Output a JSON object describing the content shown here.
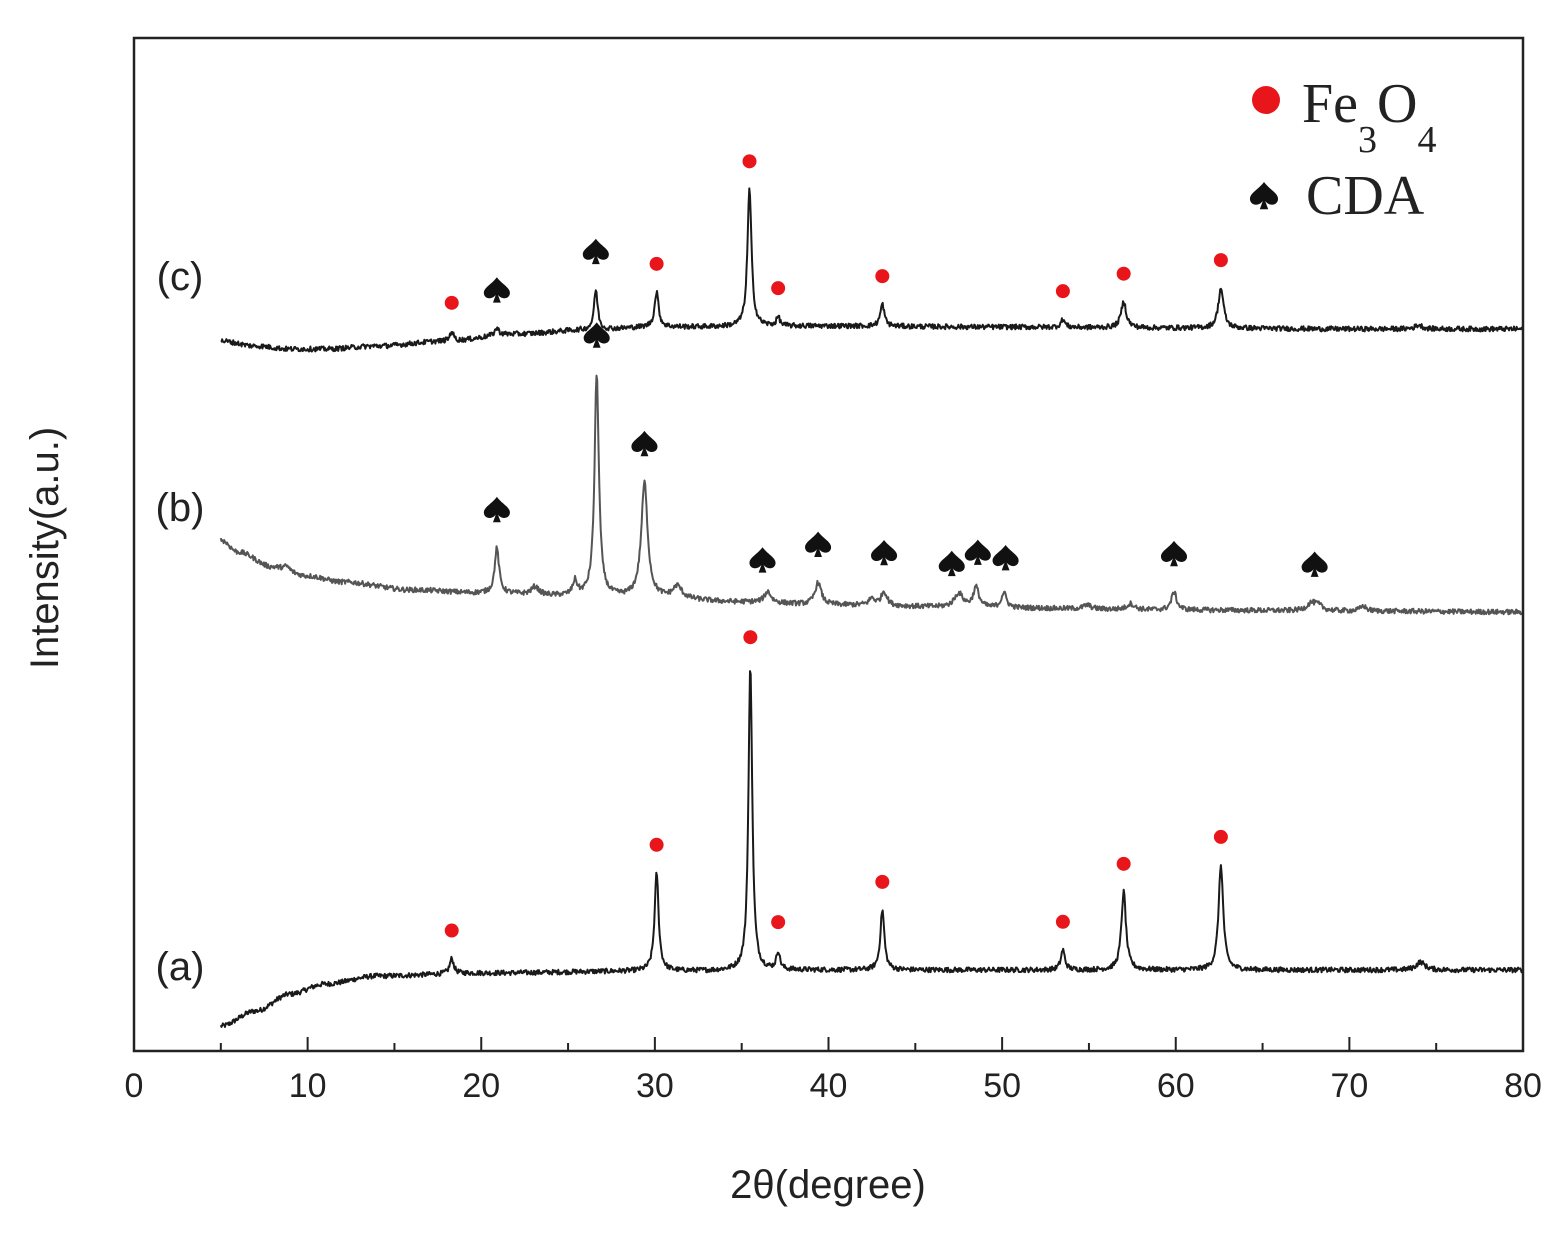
{
  "chart_data": {
    "type": "line",
    "title": "",
    "xlabel": "2θ(degree)",
    "ylabel": "Intensity(a.u.)",
    "xlim": [
      0,
      80
    ],
    "xticks": [
      0,
      10,
      20,
      30,
      40,
      50,
      60,
      70,
      80
    ],
    "yticks_shown": false,
    "grid": false,
    "legend_position": "top-right",
    "legend": [
      {
        "marker": "red-circle",
        "label": "Fe",
        "sub1": "3",
        "mid": "O",
        "sub2": "4",
        "full": "Fe3O4"
      },
      {
        "marker": "spade",
        "label": "CDA"
      }
    ],
    "colors": {
      "fe3o4_marker": "#e8161b",
      "cda_marker": "#111111",
      "trace_dark": "#1a1a1a",
      "trace_light": "#555555"
    },
    "x_range": [
      5,
      80
    ],
    "series": [
      {
        "name": "(a)",
        "label": "(a)",
        "color": "#1a1a1a",
        "baseline": [
          [
            5,
            -50
          ],
          [
            7,
            -35
          ],
          [
            9,
            -18
          ],
          [
            11,
            -8
          ],
          [
            14,
            0
          ],
          [
            20,
            3
          ],
          [
            30,
            5
          ],
          [
            40,
            6
          ],
          [
            50,
            6
          ],
          [
            60,
            6
          ],
          [
            70,
            6
          ],
          [
            80,
            6
          ]
        ],
        "peaks": [
          {
            "pos": 18.3,
            "height": 15,
            "width": 0.14
          },
          {
            "pos": 30.1,
            "height": 98,
            "width": 0.14
          },
          {
            "pos": 35.5,
            "height": 305,
            "width": 0.13
          },
          {
            "pos": 37.1,
            "height": 18,
            "width": 0.12
          },
          {
            "pos": 43.1,
            "height": 60,
            "width": 0.14
          },
          {
            "pos": 53.5,
            "height": 20,
            "width": 0.14
          },
          {
            "pos": 57.0,
            "height": 78,
            "width": 0.16
          },
          {
            "pos": 62.6,
            "height": 105,
            "width": 0.16
          },
          {
            "pos": 74.1,
            "height": 8,
            "width": 0.3
          }
        ],
        "markers": [
          {
            "type": "fe3o4",
            "x": 18.3
          },
          {
            "type": "fe3o4",
            "x": 30.1
          },
          {
            "type": "fe3o4",
            "x": 35.5
          },
          {
            "type": "fe3o4",
            "x": 37.1
          },
          {
            "type": "fe3o4",
            "x": 43.1
          },
          {
            "type": "fe3o4",
            "x": 53.5
          },
          {
            "type": "fe3o4",
            "x": 57.0
          },
          {
            "type": "fe3o4",
            "x": 62.6
          }
        ]
      },
      {
        "name": "(b)",
        "label": "(b)",
        "color": "#555555",
        "baseline": [
          [
            5,
            72
          ],
          [
            6,
            60
          ],
          [
            8,
            45
          ],
          [
            10,
            36
          ],
          [
            12,
            30
          ],
          [
            16,
            22
          ],
          [
            20,
            19
          ],
          [
            25,
            16
          ],
          [
            30,
            14
          ],
          [
            35,
            10
          ],
          [
            40,
            7
          ],
          [
            50,
            4
          ],
          [
            60,
            2
          ],
          [
            70,
            1
          ],
          [
            80,
            0
          ]
        ],
        "peaks": [
          {
            "pos": 8.8,
            "height": 4,
            "width": 0.2
          },
          {
            "pos": 20.9,
            "height": 45,
            "width": 0.15
          },
          {
            "pos": 23.1,
            "height": 8,
            "width": 0.25
          },
          {
            "pos": 25.4,
            "height": 14,
            "width": 0.15
          },
          {
            "pos": 26.65,
            "height": 222,
            "width": 0.15
          },
          {
            "pos": 29.4,
            "height": 115,
            "width": 0.22
          },
          {
            "pos": 31.3,
            "height": 12,
            "width": 0.3
          },
          {
            "pos": 36.5,
            "height": 11,
            "width": 0.22
          },
          {
            "pos": 39.4,
            "height": 22,
            "width": 0.22
          },
          {
            "pos": 42.5,
            "height": 7,
            "width": 0.2
          },
          {
            "pos": 43.2,
            "height": 14,
            "width": 0.2
          },
          {
            "pos": 47.5,
            "height": 14,
            "width": 0.3
          },
          {
            "pos": 48.5,
            "height": 20,
            "width": 0.2
          },
          {
            "pos": 50.1,
            "height": 15,
            "width": 0.18
          },
          {
            "pos": 54.9,
            "height": 4,
            "width": 0.25
          },
          {
            "pos": 57.4,
            "height": 6,
            "width": 0.25
          },
          {
            "pos": 59.9,
            "height": 18,
            "width": 0.18
          },
          {
            "pos": 67.8,
            "height": 7,
            "width": 0.3
          },
          {
            "pos": 68.2,
            "height": 5,
            "width": 0.3
          },
          {
            "pos": 70.8,
            "height": 5,
            "width": 0.2
          }
        ],
        "markers": [
          {
            "type": "cda",
            "x": 20.9
          },
          {
            "type": "cda",
            "x": 26.65
          },
          {
            "type": "cda",
            "x": 29.4
          },
          {
            "type": "cda",
            "x": 36.2
          },
          {
            "type": "cda",
            "x": 39.4
          },
          {
            "type": "cda",
            "x": 43.2
          },
          {
            "type": "cda",
            "x": 47.1
          },
          {
            "type": "cda",
            "x": 48.6
          },
          {
            "type": "cda",
            "x": 50.2
          },
          {
            "type": "cda",
            "x": 59.9
          },
          {
            "type": "cda",
            "x": 68.0
          }
        ]
      },
      {
        "name": "(c)",
        "label": "(c)",
        "color": "#1a1a1a",
        "baseline": [
          [
            5,
            10
          ],
          [
            7,
            5
          ],
          [
            9,
            2
          ],
          [
            11,
            2
          ],
          [
            14,
            5
          ],
          [
            18,
            10
          ],
          [
            22,
            17
          ],
          [
            26,
            21
          ],
          [
            30,
            24
          ],
          [
            40,
            25
          ],
          [
            50,
            24
          ],
          [
            60,
            23
          ],
          [
            70,
            22
          ],
          [
            80,
            22
          ]
        ],
        "peaks": [
          {
            "pos": 18.3,
            "height": 10,
            "width": 0.12
          },
          {
            "pos": 20.9,
            "height": 7,
            "width": 0.15
          },
          {
            "pos": 26.6,
            "height": 40,
            "width": 0.13
          },
          {
            "pos": 30.1,
            "height": 35,
            "width": 0.14
          },
          {
            "pos": 35.45,
            "height": 137,
            "width": 0.14
          },
          {
            "pos": 37.1,
            "height": 9,
            "width": 0.12
          },
          {
            "pos": 43.1,
            "height": 22,
            "width": 0.14
          },
          {
            "pos": 53.5,
            "height": 8,
            "width": 0.14
          },
          {
            "pos": 57.0,
            "height": 26,
            "width": 0.18
          },
          {
            "pos": 62.6,
            "height": 40,
            "width": 0.18
          },
          {
            "pos": 74.0,
            "height": 4,
            "width": 0.25
          }
        ],
        "markers": [
          {
            "type": "fe3o4",
            "x": 18.3
          },
          {
            "type": "cda",
            "x": 20.9
          },
          {
            "type": "cda",
            "x": 26.6
          },
          {
            "type": "fe3o4",
            "x": 30.1
          },
          {
            "type": "fe3o4",
            "x": 35.45
          },
          {
            "type": "fe3o4",
            "x": 37.1
          },
          {
            "type": "fe3o4",
            "x": 43.1
          },
          {
            "type": "fe3o4",
            "x": 53.5
          },
          {
            "type": "fe3o4",
            "x": 57.0
          },
          {
            "type": "fe3o4",
            "x": 62.6
          }
        ]
      }
    ]
  }
}
